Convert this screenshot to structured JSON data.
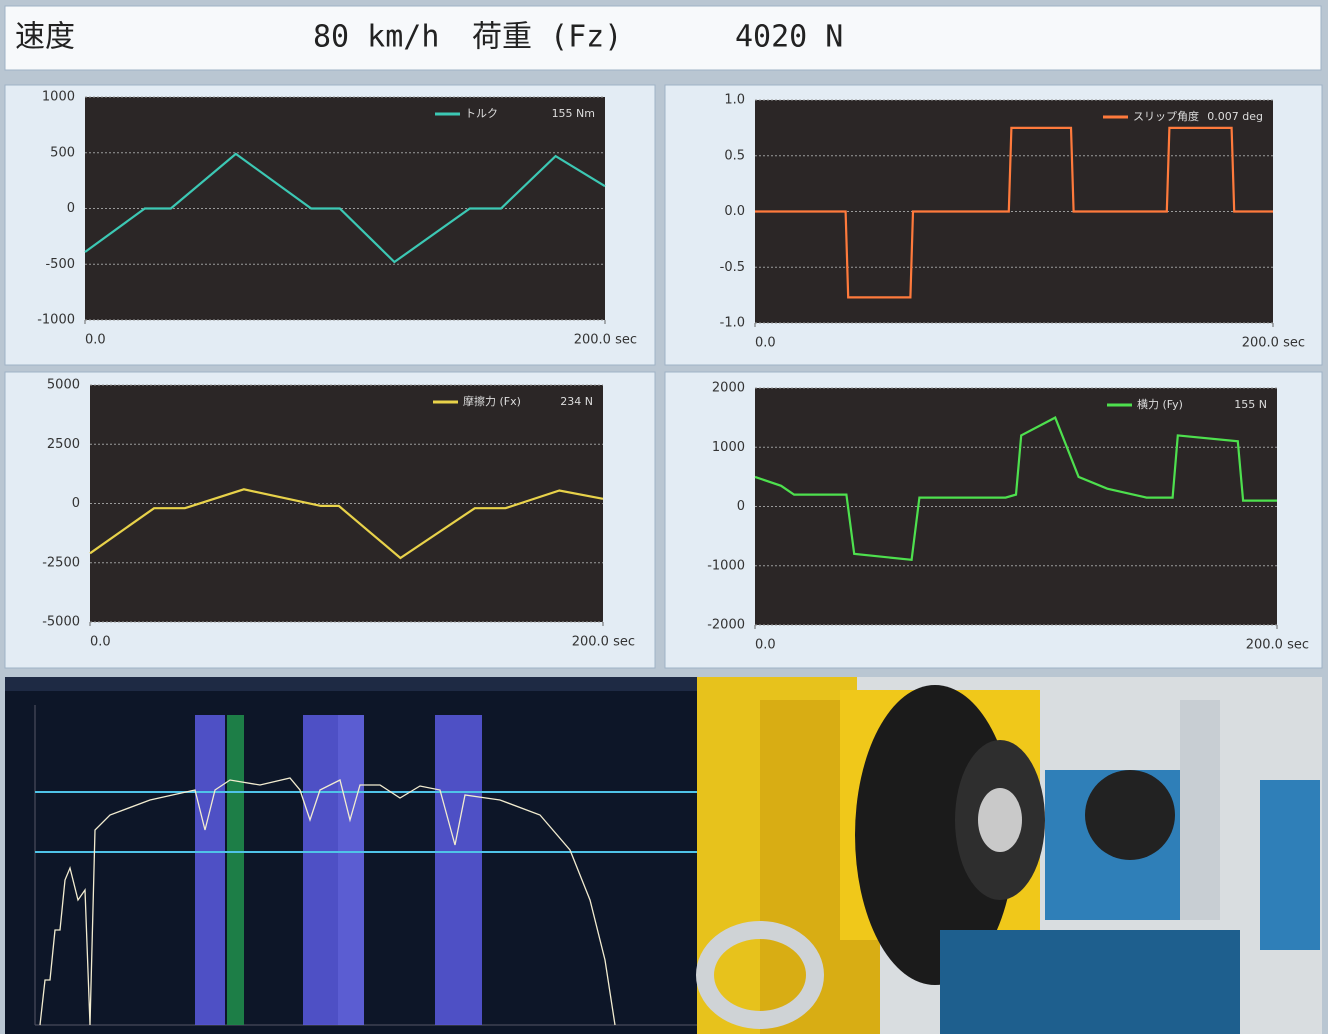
{
  "header": {
    "speed_label": "速度",
    "speed": "80 km/h",
    "load_label": "荷重 (Fz)",
    "load": "4020 N"
  },
  "chart_data": [
    {
      "type": "line",
      "x": [
        0,
        23,
        33,
        58,
        87,
        98,
        119,
        148,
        160,
        181,
        200
      ],
      "series": [
        {
          "name": "トルク",
          "color": "#3cc8b4",
          "values": [
            -390,
            0,
            0,
            490,
            0,
            0,
            -480,
            0,
            0,
            470,
            200
          ]
        }
      ],
      "readout": "155 Nm",
      "xlim": [
        0,
        200
      ],
      "xticks": [
        {
          "value": 0,
          "label": "0.0"
        },
        {
          "value": 200,
          "label": "200.0 sec"
        }
      ],
      "ylim": [
        -1000,
        1000
      ],
      "yticks": [
        -1000,
        -500,
        0,
        500,
        1000
      ],
      "grid": true
    },
    {
      "type": "line",
      "x": [
        0,
        35,
        36,
        60,
        61,
        98,
        99,
        122,
        123,
        159,
        160,
        184,
        185,
        200
      ],
      "series": [
        {
          "name": "スリップ角度",
          "color": "#ff7a3c",
          "values": [
            0,
            0,
            -0.77,
            -0.77,
            0,
            0,
            0.75,
            0.75,
            0,
            0,
            0.75,
            0.75,
            0,
            0
          ]
        }
      ],
      "readout": "0.007 deg",
      "xlim": [
        0,
        200
      ],
      "xticks": [
        {
          "value": 0,
          "label": "0.0"
        },
        {
          "value": 200,
          "label": "200.0 sec"
        }
      ],
      "ylim": [
        -1,
        1
      ],
      "yticks": [
        {
          "value": -1,
          "label": "-1.0"
        },
        {
          "value": -0.5,
          "label": "-0.5"
        },
        {
          "value": 0,
          "label": "0.0"
        },
        {
          "value": 0.5,
          "label": "0.5"
        },
        {
          "value": 1,
          "label": "1.0"
        }
      ],
      "grid": true
    },
    {
      "type": "line",
      "x": [
        0,
        25,
        37,
        60,
        90,
        97,
        121,
        150,
        162,
        183,
        200
      ],
      "series": [
        {
          "name": "摩擦力 (Fx)",
          "color": "#e8d24a",
          "values": [
            -2100,
            -200,
            -200,
            600,
            -100,
            -100,
            -2300,
            -200,
            -200,
            550,
            200
          ]
        }
      ],
      "readout": "234 N",
      "xlim": [
        0,
        200
      ],
      "xticks": [
        {
          "value": 0,
          "label": "0.0"
        },
        {
          "value": 200,
          "label": "200.0 sec"
        }
      ],
      "ylim": [
        -5000,
        5000
      ],
      "yticks": [
        -5000,
        -2500,
        0,
        2500,
        5000
      ],
      "grid": true
    },
    {
      "type": "line",
      "x": [
        0,
        10,
        15,
        35,
        38,
        60,
        63,
        96,
        100,
        102,
        115,
        124,
        135,
        150,
        160,
        162,
        185,
        187,
        200
      ],
      "series": [
        {
          "name": "横力 (Fy)",
          "color": "#4ee04e",
          "values": [
            500,
            350,
            200,
            200,
            -800,
            -900,
            150,
            150,
            200,
            1200,
            1500,
            500,
            300,
            150,
            150,
            1200,
            1100,
            100,
            100
          ]
        }
      ],
      "readout": "155 N",
      "xlim": [
        0,
        200
      ],
      "xticks": [
        {
          "value": 0,
          "label": "0.0"
        },
        {
          "value": 200,
          "label": "200.0 sec"
        }
      ],
      "ylim": [
        -2000,
        2000
      ],
      "yticks": [
        -2000,
        -1000,
        0,
        1000,
        2000
      ],
      "grid": true
    }
  ]
}
